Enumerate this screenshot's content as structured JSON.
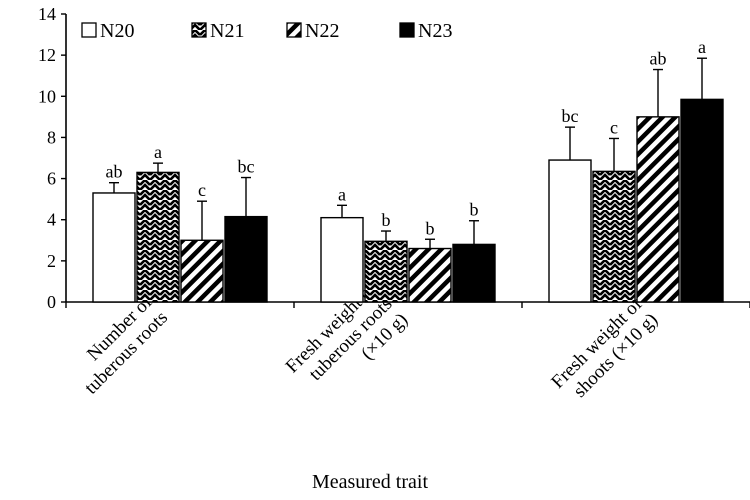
{
  "chart_data": {
    "type": "bar",
    "xlabel": "Measured  trait",
    "ylabel": "",
    "ylim": [
      0,
      14
    ],
    "yticks": [
      0,
      2,
      4,
      6,
      8,
      10,
      12,
      14
    ],
    "legend_position": "top-left",
    "categories": [
      [
        "Number of",
        "tuberous roots"
      ],
      [
        "Fresh weight of",
        "tuberous roots",
        "(×10 g)"
      ],
      [
        "Fresh weight of",
        "shoots (×10 g)"
      ]
    ],
    "series": [
      {
        "name": "N20",
        "fill": "white",
        "values": [
          5.3,
          4.1,
          6.9
        ],
        "errors": [
          0.5,
          0.6,
          1.6
        ],
        "labels": [
          "ab",
          "a",
          "bc"
        ]
      },
      {
        "name": "N21",
        "fill": "zigzag",
        "values": [
          6.3,
          2.95,
          6.35
        ],
        "errors": [
          0.45,
          0.5,
          1.6
        ],
        "labels": [
          "a",
          "b",
          "c"
        ]
      },
      {
        "name": "N22",
        "fill": "diagonal",
        "values": [
          3.0,
          2.6,
          9.0
        ],
        "errors": [
          1.9,
          0.45,
          2.3
        ],
        "labels": [
          "c",
          "b",
          "ab"
        ]
      },
      {
        "name": "N23",
        "fill": "black",
        "values": [
          4.15,
          2.8,
          9.85
        ],
        "errors": [
          1.9,
          1.15,
          2.0
        ],
        "labels": [
          "bc",
          "b",
          "a"
        ]
      }
    ],
    "grid": false
  }
}
